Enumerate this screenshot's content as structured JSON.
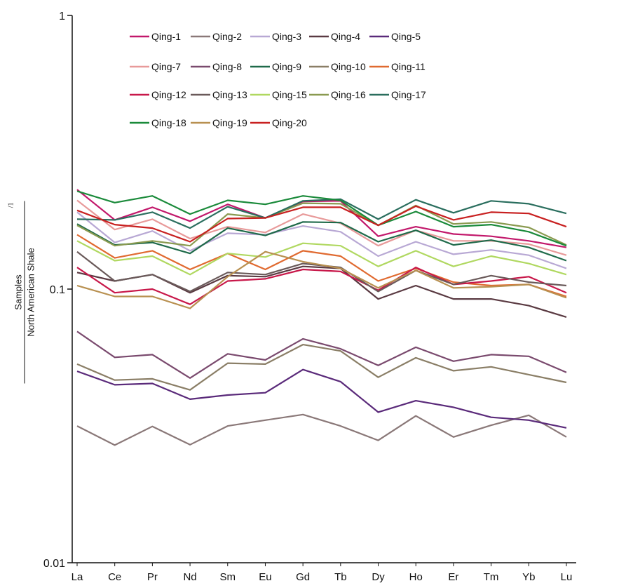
{
  "chart_data": {
    "type": "line",
    "title": "",
    "xlabel": "",
    "ylabel": {
      "numerator": "Samples",
      "denominator": "North American Shale",
      "suffix": "/1"
    },
    "yscale": "log",
    "ylim": [
      0.01,
      1
    ],
    "yticks": [
      "1",
      "0.1",
      "0.01"
    ],
    "yticks_values": [
      1,
      0.1,
      0.01
    ],
    "legend_placement": "top",
    "categories": [
      "La",
      "Ce",
      "Pr",
      "Nd",
      "Sm",
      "Eu",
      "Gd",
      "Tb",
      "Dy",
      "Ho",
      "Er",
      "Tm",
      "Yb",
      "Lu"
    ],
    "series": [
      {
        "name": "Qing-1",
        "color": "#c2186b",
        "values": [
          0.231,
          0.179,
          0.199,
          0.177,
          0.204,
          0.182,
          0.209,
          0.21,
          0.156,
          0.169,
          0.159,
          0.156,
          0.15,
          0.142
        ]
      },
      {
        "name": "Qing-2",
        "color": "#8a7878",
        "values": [
          0.0316,
          0.0269,
          0.0315,
          0.027,
          0.0316,
          0.0332,
          0.0348,
          0.0316,
          0.028,
          0.0344,
          0.0288,
          0.0318,
          0.0346,
          0.0288
        ]
      },
      {
        "name": "Qing-3",
        "color": "#b8a8d4",
        "values": [
          0.191,
          0.148,
          0.163,
          0.138,
          0.16,
          0.158,
          0.17,
          0.162,
          0.132,
          0.149,
          0.134,
          0.139,
          0.133,
          0.119
        ]
      },
      {
        "name": "Qing-4",
        "color": "#5a3a42",
        "values": [
          0.115,
          0.107,
          0.113,
          0.097,
          0.112,
          0.111,
          0.121,
          0.119,
          0.092,
          0.103,
          0.092,
          0.092,
          0.087,
          0.079
        ]
      },
      {
        "name": "Qing-5",
        "color": "#5a2a7a",
        "values": [
          0.0501,
          0.0447,
          0.0452,
          0.0396,
          0.041,
          0.0418,
          0.0508,
          0.0459,
          0.0355,
          0.0391,
          0.037,
          0.034,
          0.0332,
          0.0311
        ]
      },
      {
        "name": "Qing-7",
        "color": "#e89a9a",
        "values": [
          0.211,
          0.165,
          0.18,
          0.153,
          0.169,
          0.161,
          0.188,
          0.174,
          0.144,
          0.164,
          0.15,
          0.15,
          0.146,
          0.133
        ]
      },
      {
        "name": "Qing-8",
        "color": "#7a4a6e",
        "values": [
          0.07,
          0.0563,
          0.0576,
          0.0473,
          0.058,
          0.0551,
          0.0658,
          0.0605,
          0.0526,
          0.0613,
          0.0545,
          0.0576,
          0.0568,
          0.0496
        ]
      },
      {
        "name": "Qing-9",
        "color": "#1f6a4a",
        "values": [
          0.173,
          0.145,
          0.148,
          0.135,
          0.167,
          0.157,
          0.176,
          0.175,
          0.149,
          0.164,
          0.145,
          0.151,
          0.142,
          0.127
        ]
      },
      {
        "name": "Qing-10",
        "color": "#8a7e66",
        "values": [
          0.0532,
          0.0465,
          0.047,
          0.0428,
          0.0536,
          0.0532,
          0.0627,
          0.0594,
          0.0476,
          0.0561,
          0.0503,
          0.052,
          0.0487,
          0.0456
        ]
      },
      {
        "name": "Qing-11",
        "color": "#e06a30",
        "values": [
          0.158,
          0.13,
          0.138,
          0.118,
          0.135,
          0.118,
          0.138,
          0.132,
          0.107,
          0.119,
          0.106,
          0.103,
          0.104,
          0.094
        ]
      },
      {
        "name": "Qing-12",
        "color": "#c8184a",
        "values": [
          0.12,
          0.097,
          0.1,
          0.088,
          0.107,
          0.109,
          0.118,
          0.116,
          0.099,
          0.12,
          0.104,
          0.107,
          0.111,
          0.097
        ]
      },
      {
        "name": "Qing-13",
        "color": "#6a5a5a",
        "values": [
          0.137,
          0.107,
          0.113,
          0.098,
          0.115,
          0.113,
          0.124,
          0.12,
          0.098,
          0.117,
          0.104,
          0.112,
          0.106,
          0.103
        ]
      },
      {
        "name": "Qing-15",
        "color": "#b0d860",
        "values": [
          0.15,
          0.127,
          0.132,
          0.113,
          0.135,
          0.131,
          0.147,
          0.144,
          0.121,
          0.138,
          0.121,
          0.132,
          0.124,
          0.113
        ]
      },
      {
        "name": "Qing-16",
        "color": "#8a9a50",
        "values": [
          0.171,
          0.144,
          0.15,
          0.144,
          0.188,
          0.182,
          0.206,
          0.205,
          0.171,
          0.202,
          0.173,
          0.176,
          0.168,
          0.145
        ]
      },
      {
        "name": "Qing-17",
        "color": "#2a6e5e",
        "values": [
          0.18,
          0.179,
          0.191,
          0.167,
          0.2,
          0.182,
          0.21,
          0.213,
          0.18,
          0.212,
          0.19,
          0.21,
          0.205,
          0.189
        ]
      },
      {
        "name": "Qing-18",
        "color": "#1a8a3a",
        "values": [
          0.228,
          0.207,
          0.219,
          0.188,
          0.211,
          0.204,
          0.219,
          0.211,
          0.171,
          0.192,
          0.169,
          0.172,
          0.162,
          0.144
        ]
      },
      {
        "name": "Qing-19",
        "color": "#b89050",
        "values": [
          0.103,
          0.094,
          0.094,
          0.085,
          0.111,
          0.137,
          0.126,
          0.119,
          0.101,
          0.117,
          0.101,
          0.102,
          0.104,
          0.093
        ]
      },
      {
        "name": "Qing-20",
        "color": "#c82020",
        "values": [
          0.194,
          0.172,
          0.167,
          0.149,
          0.181,
          0.182,
          0.199,
          0.199,
          0.171,
          0.201,
          0.179,
          0.191,
          0.189,
          0.169
        ]
      }
    ]
  }
}
